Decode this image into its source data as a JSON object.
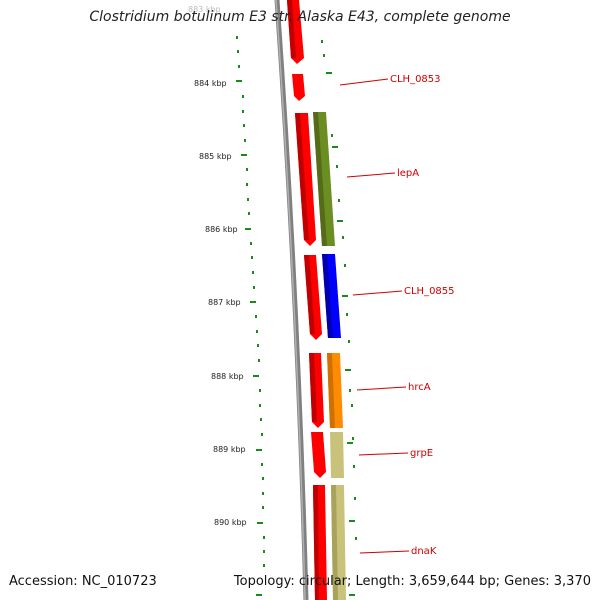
{
  "title": "Clostridium botulinum E3 str. Alaska E43, complete genome",
  "footer": {
    "accession": "Accession: NC_010723",
    "summary": "Topology: circular; Length: 3,659,644 bp; Genes: 3,370"
  },
  "ruler": {
    "partial_top_label": "883 kbp",
    "ticks": [
      "884 kbp",
      "885 kbp",
      "886 kbp",
      "887 kbp",
      "888 kbp",
      "889 kbp",
      "890 kbp"
    ]
  },
  "genes": [
    "CLH_0853",
    "lepA",
    "CLH_0855",
    "hrcA",
    "grpE",
    "dnaK"
  ],
  "colors": {
    "backbone": "#777777",
    "forward_strand": "#ff0000",
    "ruler": "#1a8a1a",
    "label": "#d00000",
    "lepA": "#6b8e23",
    "CLH_0855": "#0000ff",
    "hrcA": "#ff8c00",
    "grpE": "#c8c27a",
    "dnaK": "#c8c27a"
  }
}
